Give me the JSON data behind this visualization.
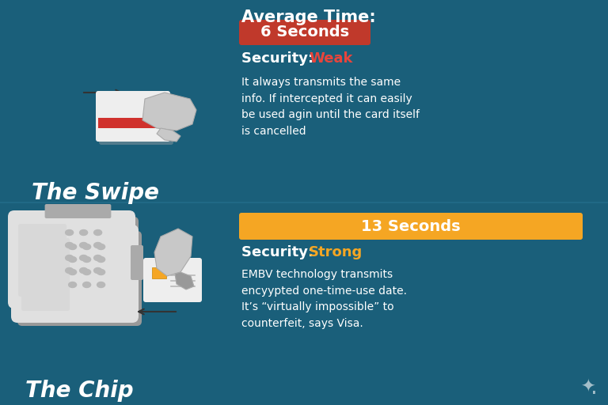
{
  "bg_color": "#1a5f7a",
  "title_avg_time": "Average Time:",
  "swipe_seconds_label": "6 Seconds",
  "swipe_seconds_bg": "#c0392b",
  "swipe_seconds_color": "#ffffff",
  "swipe_security_label": "Security: ",
  "swipe_security_word": "Weak",
  "swipe_security_word_color": "#e8453c",
  "swipe_desc": "It always transmits the same\ninfo. If intercepted it can easily\nbe used agin until the card itself\nis cancelled",
  "swipe_title": "The Swipe",
  "chip_seconds_label": "13 Seconds",
  "chip_seconds_bg": "#f5a623",
  "chip_seconds_color": "#ffffff",
  "chip_security_label": "Security: ",
  "chip_security_word": "Strong",
  "chip_security_word_color": "#f5a623",
  "chip_desc": "EMBV technology transmits\nencyypted one-time-use date.\nIt’s “virtually impossible” to\ncounterfeit, says Visa.",
  "chip_title": "The Chip",
  "text_color": "#ffffff",
  "card_color": "#eeeeee",
  "card_shadow": "#aaaaaa",
  "reader_color": "#e0e0e0",
  "reader_shadow": "#999999",
  "reader_slot": "#aaaaaa",
  "stripe_color": "#d0312d",
  "chip_gold": "#f5a623",
  "hand_color": "#c8c8c8",
  "hand_edge": "#aaaaaa",
  "arrow_color": "#333333",
  "screen_color": "#d8d8d8",
  "dot_color": "#b8b8b8",
  "divider_color": "#2a7a9a"
}
